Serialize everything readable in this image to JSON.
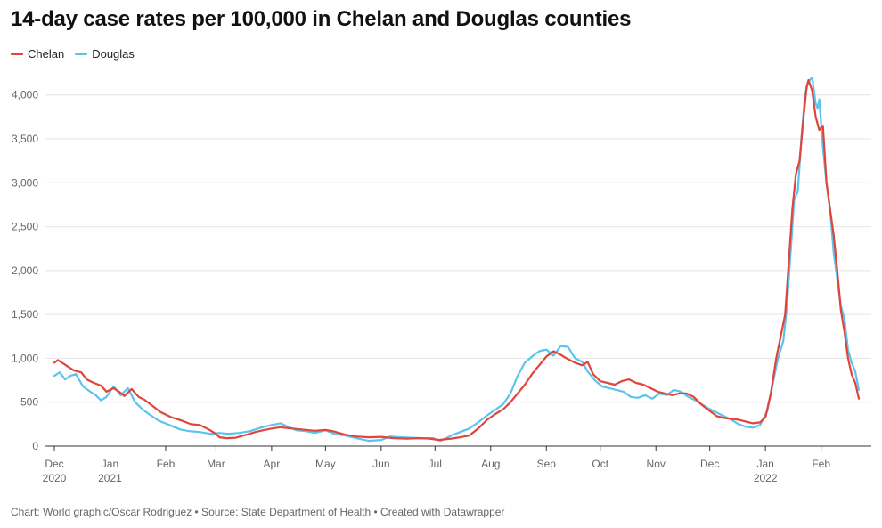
{
  "title": "14-day case rates per 100,000 in Chelan and Douglas counties",
  "footer": "Chart: World graphic/Oscar Rodriguez • Source: State Department of Health • Created with Datawrapper",
  "colors": {
    "chelan": "#e0443a",
    "douglas": "#5bc4ec",
    "grid": "#e4e4e4",
    "axis": "#333333",
    "tick_text": "#666666"
  },
  "chart_data": {
    "type": "line",
    "xlabel": "",
    "ylabel": "",
    "ylim": [
      0,
      4200
    ],
    "y_ticks": [
      {
        "value": 0,
        "label": "0"
      },
      {
        "value": 500,
        "label": "500"
      },
      {
        "value": 1000,
        "label": "1,000"
      },
      {
        "value": 1500,
        "label": "1,500"
      },
      {
        "value": 2000,
        "label": "2,000"
      },
      {
        "value": 2500,
        "label": "2,500"
      },
      {
        "value": 3000,
        "label": "3,000"
      },
      {
        "value": 3500,
        "label": "3,500"
      },
      {
        "value": 4000,
        "label": "4,000"
      }
    ],
    "x_ticks": [
      {
        "date": "2020-12-01",
        "label": "Dec",
        "sub": "2020"
      },
      {
        "date": "2021-01-01",
        "label": "Jan",
        "sub": "2021"
      },
      {
        "date": "2021-02-01",
        "label": "Feb",
        "sub": ""
      },
      {
        "date": "2021-03-01",
        "label": "Mar",
        "sub": ""
      },
      {
        "date": "2021-04-01",
        "label": "Apr",
        "sub": ""
      },
      {
        "date": "2021-05-01",
        "label": "May",
        "sub": ""
      },
      {
        "date": "2021-06-01",
        "label": "Jun",
        "sub": ""
      },
      {
        "date": "2021-07-01",
        "label": "Jul",
        "sub": ""
      },
      {
        "date": "2021-08-01",
        "label": "Aug",
        "sub": ""
      },
      {
        "date": "2021-09-01",
        "label": "Sep",
        "sub": ""
      },
      {
        "date": "2021-10-01",
        "label": "Oct",
        "sub": ""
      },
      {
        "date": "2021-11-01",
        "label": "Nov",
        "sub": ""
      },
      {
        "date": "2021-12-01",
        "label": "Dec",
        "sub": ""
      },
      {
        "date": "2022-01-01",
        "label": "Jan",
        "sub": "2022"
      },
      {
        "date": "2022-02-01",
        "label": "Feb",
        "sub": ""
      }
    ],
    "grid": true,
    "legend_position": "top-left",
    "series": [
      {
        "name": "Chelan",
        "color": "#e0443a",
        "points": [
          [
            "2020-12-01",
            950
          ],
          [
            "2020-12-03",
            980
          ],
          [
            "2020-12-06",
            940
          ],
          [
            "2020-12-09",
            900
          ],
          [
            "2020-12-12",
            860
          ],
          [
            "2020-12-16",
            840
          ],
          [
            "2020-12-19",
            760
          ],
          [
            "2020-12-23",
            720
          ],
          [
            "2020-12-27",
            690
          ],
          [
            "2020-12-30",
            620
          ],
          [
            "2021-01-03",
            660
          ],
          [
            "2021-01-06",
            620
          ],
          [
            "2021-01-09",
            570
          ],
          [
            "2021-01-13",
            650
          ],
          [
            "2021-01-17",
            560
          ],
          [
            "2021-01-20",
            530
          ],
          [
            "2021-01-24",
            470
          ],
          [
            "2021-01-29",
            390
          ],
          [
            "2021-02-04",
            330
          ],
          [
            "2021-02-10",
            290
          ],
          [
            "2021-02-15",
            250
          ],
          [
            "2021-02-20",
            240
          ],
          [
            "2021-02-25",
            190
          ],
          [
            "2021-03-01",
            140
          ],
          [
            "2021-03-03",
            100
          ],
          [
            "2021-03-07",
            90
          ],
          [
            "2021-03-12",
            95
          ],
          [
            "2021-03-18",
            130
          ],
          [
            "2021-03-23",
            160
          ],
          [
            "2021-03-27",
            180
          ],
          [
            "2021-04-01",
            200
          ],
          [
            "2021-04-06",
            215
          ],
          [
            "2021-04-10",
            205
          ],
          [
            "2021-04-15",
            195
          ],
          [
            "2021-04-20",
            185
          ],
          [
            "2021-04-25",
            175
          ],
          [
            "2021-05-01",
            185
          ],
          [
            "2021-05-06",
            165
          ],
          [
            "2021-05-12",
            130
          ],
          [
            "2021-05-18",
            110
          ],
          [
            "2021-05-25",
            100
          ],
          [
            "2021-06-01",
            105
          ],
          [
            "2021-06-08",
            90
          ],
          [
            "2021-06-15",
            85
          ],
          [
            "2021-06-22",
            90
          ],
          [
            "2021-06-28",
            85
          ],
          [
            "2021-07-03",
            70
          ],
          [
            "2021-07-10",
            85
          ],
          [
            "2021-07-15",
            100
          ],
          [
            "2021-07-20",
            120
          ],
          [
            "2021-07-25",
            200
          ],
          [
            "2021-07-30",
            300
          ],
          [
            "2021-08-04",
            370
          ],
          [
            "2021-08-08",
            420
          ],
          [
            "2021-08-12",
            500
          ],
          [
            "2021-08-16",
            600
          ],
          [
            "2021-08-20",
            700
          ],
          [
            "2021-08-24",
            820
          ],
          [
            "2021-08-28",
            920
          ],
          [
            "2021-09-01",
            1020
          ],
          [
            "2021-09-05",
            1080
          ],
          [
            "2021-09-09",
            1040
          ],
          [
            "2021-09-13",
            990
          ],
          [
            "2021-09-17",
            950
          ],
          [
            "2021-09-21",
            920
          ],
          [
            "2021-09-24",
            960
          ],
          [
            "2021-09-27",
            820
          ],
          [
            "2021-10-01",
            740
          ],
          [
            "2021-10-05",
            720
          ],
          [
            "2021-10-09",
            700
          ],
          [
            "2021-10-13",
            740
          ],
          [
            "2021-10-17",
            760
          ],
          [
            "2021-10-21",
            720
          ],
          [
            "2021-10-25",
            700
          ],
          [
            "2021-10-29",
            660
          ],
          [
            "2021-11-02",
            620
          ],
          [
            "2021-11-06",
            600
          ],
          [
            "2021-11-10",
            580
          ],
          [
            "2021-11-14",
            600
          ],
          [
            "2021-11-18",
            600
          ],
          [
            "2021-11-22",
            560
          ],
          [
            "2021-11-26",
            480
          ],
          [
            "2021-12-01",
            400
          ],
          [
            "2021-12-05",
            340
          ],
          [
            "2021-12-09",
            320
          ],
          [
            "2021-12-13",
            310
          ],
          [
            "2021-12-17",
            300
          ],
          [
            "2021-12-21",
            280
          ],
          [
            "2021-12-25",
            260
          ],
          [
            "2021-12-29",
            270
          ],
          [
            "2022-01-01",
            330
          ],
          [
            "2022-01-04",
            600
          ],
          [
            "2022-01-07",
            1000
          ],
          [
            "2022-01-10",
            1300
          ],
          [
            "2022-01-12",
            1500
          ],
          [
            "2022-01-14",
            2100
          ],
          [
            "2022-01-16",
            2700
          ],
          [
            "2022-01-18",
            3100
          ],
          [
            "2022-01-20",
            3250
          ],
          [
            "2022-01-22",
            3700
          ],
          [
            "2022-01-24",
            4100
          ],
          [
            "2022-01-25",
            4170
          ],
          [
            "2022-01-27",
            4050
          ],
          [
            "2022-01-29",
            3750
          ],
          [
            "2022-01-31",
            3600
          ],
          [
            "2022-02-02",
            3650
          ],
          [
            "2022-02-04",
            3000
          ],
          [
            "2022-02-06",
            2700
          ],
          [
            "2022-02-08",
            2400
          ],
          [
            "2022-02-10",
            2000
          ],
          [
            "2022-02-12",
            1550
          ],
          [
            "2022-02-14",
            1300
          ],
          [
            "2022-02-16",
            1000
          ],
          [
            "2022-02-18",
            820
          ],
          [
            "2022-02-20",
            720
          ],
          [
            "2022-02-22",
            540
          ]
        ]
      },
      {
        "name": "Douglas",
        "color": "#5bc4ec",
        "points": [
          [
            "2020-12-01",
            800
          ],
          [
            "2020-12-04",
            840
          ],
          [
            "2020-12-07",
            760
          ],
          [
            "2020-12-10",
            800
          ],
          [
            "2020-12-13",
            820
          ],
          [
            "2020-12-17",
            680
          ],
          [
            "2020-12-21",
            620
          ],
          [
            "2020-12-24",
            580
          ],
          [
            "2020-12-27",
            520
          ],
          [
            "2020-12-30",
            560
          ],
          [
            "2021-01-03",
            680
          ],
          [
            "2021-01-07",
            580
          ],
          [
            "2021-01-11",
            660
          ],
          [
            "2021-01-15",
            500
          ],
          [
            "2021-01-19",
            420
          ],
          [
            "2021-01-23",
            360
          ],
          [
            "2021-01-28",
            290
          ],
          [
            "2021-02-03",
            240
          ],
          [
            "2021-02-09",
            190
          ],
          [
            "2021-02-14",
            170
          ],
          [
            "2021-02-20",
            160
          ],
          [
            "2021-02-26",
            140
          ],
          [
            "2021-03-03",
            150
          ],
          [
            "2021-03-08",
            140
          ],
          [
            "2021-03-14",
            150
          ],
          [
            "2021-03-20",
            170
          ],
          [
            "2021-03-26",
            210
          ],
          [
            "2021-04-01",
            240
          ],
          [
            "2021-04-06",
            260
          ],
          [
            "2021-04-10",
            220
          ],
          [
            "2021-04-15",
            180
          ],
          [
            "2021-04-20",
            170
          ],
          [
            "2021-04-25",
            150
          ],
          [
            "2021-05-01",
            180
          ],
          [
            "2021-05-06",
            140
          ],
          [
            "2021-05-12",
            120
          ],
          [
            "2021-05-18",
            90
          ],
          [
            "2021-05-25",
            60
          ],
          [
            "2021-06-01",
            70
          ],
          [
            "2021-06-06",
            110
          ],
          [
            "2021-06-12",
            100
          ],
          [
            "2021-06-18",
            95
          ],
          [
            "2021-06-24",
            90
          ],
          [
            "2021-06-30",
            90
          ],
          [
            "2021-07-04",
            60
          ],
          [
            "2021-07-10",
            120
          ],
          [
            "2021-07-15",
            160
          ],
          [
            "2021-07-20",
            200
          ],
          [
            "2021-07-25",
            270
          ],
          [
            "2021-07-30",
            350
          ],
          [
            "2021-08-04",
            420
          ],
          [
            "2021-08-08",
            480
          ],
          [
            "2021-08-12",
            600
          ],
          [
            "2021-08-16",
            800
          ],
          [
            "2021-08-20",
            950
          ],
          [
            "2021-08-24",
            1020
          ],
          [
            "2021-08-28",
            1080
          ],
          [
            "2021-09-01",
            1100
          ],
          [
            "2021-09-05",
            1030
          ],
          [
            "2021-09-09",
            1140
          ],
          [
            "2021-09-13",
            1130
          ],
          [
            "2021-09-17",
            1000
          ],
          [
            "2021-09-21",
            960
          ],
          [
            "2021-09-24",
            850
          ],
          [
            "2021-09-28",
            750
          ],
          [
            "2021-10-02",
            680
          ],
          [
            "2021-10-06",
            660
          ],
          [
            "2021-10-10",
            640
          ],
          [
            "2021-10-14",
            620
          ],
          [
            "2021-10-18",
            560
          ],
          [
            "2021-10-22",
            550
          ],
          [
            "2021-10-26",
            580
          ],
          [
            "2021-10-30",
            540
          ],
          [
            "2021-11-03",
            600
          ],
          [
            "2021-11-07",
            580
          ],
          [
            "2021-11-11",
            640
          ],
          [
            "2021-11-15",
            620
          ],
          [
            "2021-11-19",
            560
          ],
          [
            "2021-11-23",
            520
          ],
          [
            "2021-11-27",
            470
          ],
          [
            "2021-12-01",
            420
          ],
          [
            "2021-12-05",
            380
          ],
          [
            "2021-12-09",
            340
          ],
          [
            "2021-12-13",
            300
          ],
          [
            "2021-12-17",
            250
          ],
          [
            "2021-12-21",
            220
          ],
          [
            "2021-12-25",
            210
          ],
          [
            "2021-12-29",
            240
          ],
          [
            "2022-01-02",
            400
          ],
          [
            "2022-01-05",
            700
          ],
          [
            "2022-01-08",
            1000
          ],
          [
            "2022-01-11",
            1200
          ],
          [
            "2022-01-13",
            1600
          ],
          [
            "2022-01-15",
            2200
          ],
          [
            "2022-01-17",
            2800
          ],
          [
            "2022-01-19",
            2900
          ],
          [
            "2022-01-21",
            3500
          ],
          [
            "2022-01-23",
            4000
          ],
          [
            "2022-01-25",
            4150
          ],
          [
            "2022-01-27",
            4200
          ],
          [
            "2022-01-29",
            3900
          ],
          [
            "2022-01-30",
            3850
          ],
          [
            "2022-01-31",
            3950
          ],
          [
            "2022-02-02",
            3400
          ],
          [
            "2022-02-04",
            3000
          ],
          [
            "2022-02-06",
            2700
          ],
          [
            "2022-02-08",
            2200
          ],
          [
            "2022-02-10",
            1900
          ],
          [
            "2022-02-12",
            1600
          ],
          [
            "2022-02-14",
            1450
          ],
          [
            "2022-02-16",
            1100
          ],
          [
            "2022-02-18",
            950
          ],
          [
            "2022-02-20",
            850
          ],
          [
            "2022-02-22",
            640
          ]
        ]
      }
    ]
  }
}
